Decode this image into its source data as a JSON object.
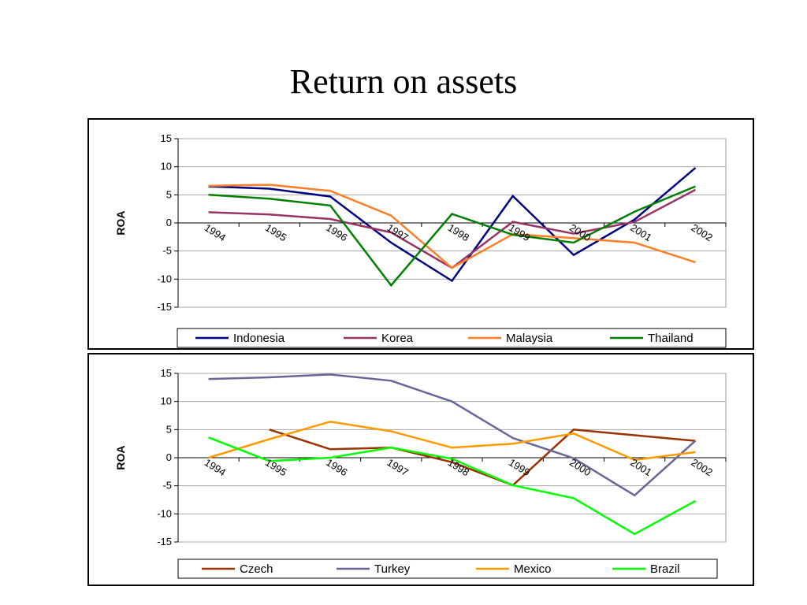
{
  "slide": {
    "title": "Return on assets"
  },
  "chart_data": [
    {
      "type": "line",
      "title": "",
      "ylabel": "ROA",
      "xlabel": "",
      "ylim": [
        -15,
        15
      ],
      "yticks": [
        15,
        10,
        5,
        0,
        -5,
        -10,
        -15
      ],
      "grid": true,
      "legend_position": "bottom",
      "categories": [
        "1994",
        "1995",
        "1996",
        "1997",
        "1998",
        "1999",
        "2000",
        "2001",
        "2002"
      ],
      "series": [
        {
          "name": "Indonesia",
          "color": "#000080",
          "values": [
            6.5,
            6.1,
            4.7,
            -3.5,
            -10.3,
            4.8,
            -5.7,
            0.6,
            9.8
          ]
        },
        {
          "name": "Korea",
          "color": "#993366",
          "values": [
            1.9,
            1.5,
            0.7,
            -1.7,
            -8.0,
            0.2,
            -1.9,
            0.2,
            5.9
          ]
        },
        {
          "name": "Malaysia",
          "color": "#FF7F27",
          "values": [
            6.6,
            6.8,
            5.7,
            1.3,
            -8.0,
            -2.0,
            -2.7,
            -3.5,
            -7.0
          ]
        },
        {
          "name": "Thailand",
          "color": "#008000",
          "values": [
            5.0,
            4.3,
            3.1,
            -11.1,
            1.6,
            -2.1,
            -3.5,
            2.0,
            6.5
          ]
        }
      ]
    },
    {
      "type": "line",
      "title": "",
      "ylabel": "ROA",
      "xlabel": "",
      "ylim": [
        -15,
        15
      ],
      "yticks": [
        15,
        10,
        5,
        0,
        -5,
        -10,
        -15
      ],
      "grid": true,
      "legend_position": "bottom",
      "categories": [
        "1994",
        "1995",
        "1996",
        "1997",
        "1998",
        "1999",
        "2000",
        "2001",
        "2002"
      ],
      "series": [
        {
          "name": "Czech",
          "color": "#993300",
          "values": [
            null,
            5.0,
            1.5,
            1.8,
            -0.8,
            -4.9,
            5.0,
            4.0,
            3.0
          ]
        },
        {
          "name": "Turkey",
          "color": "#666699",
          "values": [
            14.0,
            14.3,
            14.8,
            13.7,
            10.0,
            3.5,
            -0.1,
            -6.7,
            3.0
          ]
        },
        {
          "name": "Mexico",
          "color": "#FF9900",
          "values": [
            0.0,
            3.3,
            6.4,
            4.7,
            1.8,
            2.5,
            4.3,
            -0.4,
            1.0
          ]
        },
        {
          "name": "Brazil",
          "color": "#00FF00",
          "values": [
            3.6,
            -0.6,
            0.0,
            1.8,
            -0.2,
            -4.9,
            -7.2,
            -13.6,
            -7.7
          ]
        }
      ]
    }
  ]
}
